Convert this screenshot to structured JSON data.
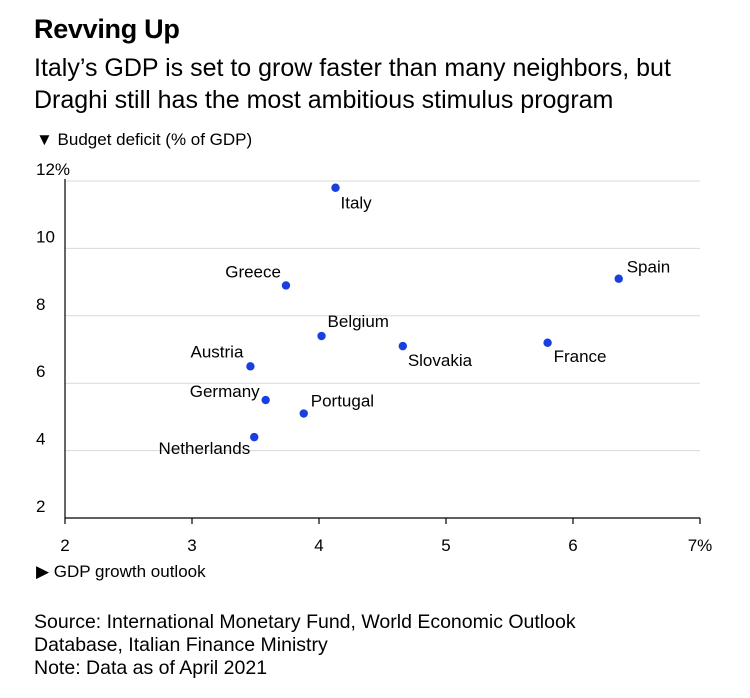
{
  "header": {
    "title": "Revving Up",
    "subtitle": "Italy’s GDP is set to grow faster than many neighbors, but Draghi still has the most ambitious stimulus program"
  },
  "footer": {
    "source": "Source: International Monetary Fund, World Economic Outlook Database, Italian Finance Ministry",
    "note": "Note: Data as of April 2021"
  },
  "chart_data": {
    "type": "scatter",
    "title": "Revving Up",
    "subtitle": "Italy’s GDP is set to grow faster than many neighbors, but Draghi still has the most ambitious stimulus program",
    "xlabel": "▶ GDP growth outlook",
    "ylabel": "▼ Budget deficit (% of GDP)",
    "xlim": [
      2,
      7
    ],
    "ylim": [
      2,
      12
    ],
    "x_ticks": [
      "2",
      "3",
      "4",
      "5",
      "6",
      "7%"
    ],
    "y_ticks": [
      "2",
      "4",
      "6",
      "8",
      "10",
      "12%"
    ],
    "grid": "horizontal",
    "point_color": "#1a3fe0",
    "points": [
      {
        "label": "Italy",
        "x": 4.13,
        "y": 11.8
      },
      {
        "label": "Spain",
        "x": 6.36,
        "y": 9.1
      },
      {
        "label": "Greece",
        "x": 3.74,
        "y": 8.9
      },
      {
        "label": "Belgium",
        "x": 4.02,
        "y": 7.4
      },
      {
        "label": "France",
        "x": 5.8,
        "y": 7.2
      },
      {
        "label": "Slovakia",
        "x": 4.66,
        "y": 7.1
      },
      {
        "label": "Austria",
        "x": 3.46,
        "y": 6.5
      },
      {
        "label": "Germany",
        "x": 3.58,
        "y": 5.5
      },
      {
        "label": "Portugal",
        "x": 3.88,
        "y": 5.1
      },
      {
        "label": "Netherlands",
        "x": 3.49,
        "y": 4.4
      }
    ]
  }
}
